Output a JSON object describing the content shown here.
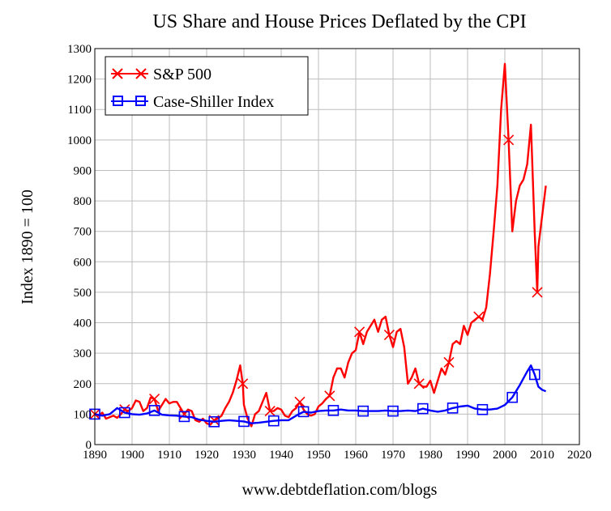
{
  "chart_data": {
    "type": "line",
    "title": "US Share and House Prices Deflated by the CPI",
    "ylabel": "Index 1890 = 100",
    "footer": "www.debtdeflation.com/blogs",
    "xlim": [
      1890,
      2020
    ],
    "ylim": [
      0,
      1300
    ],
    "xticks": [
      1890,
      1900,
      1910,
      1920,
      1930,
      1940,
      1950,
      1960,
      1970,
      1980,
      1990,
      2000,
      2010,
      2020
    ],
    "yticks": [
      0,
      100,
      200,
      300,
      400,
      500,
      600,
      700,
      800,
      900,
      1000,
      1100,
      1200,
      1300
    ],
    "xtick_labels": [
      "1890",
      "1900",
      "1910",
      "1920",
      "1930",
      "1940",
      "1950",
      "1960",
      "1970",
      "1980",
      "1990",
      "2000",
      "2010",
      "2020"
    ],
    "ytick_labels": [
      "0",
      "100",
      "200",
      "300",
      "400",
      "500",
      "600",
      "700",
      "800",
      "900",
      "1000",
      "1100",
      "1200",
      "1300"
    ],
    "grid": true,
    "legend_position": "top-left",
    "series": [
      {
        "name": "S&P 500",
        "color": "#ff0000",
        "marker": "x",
        "x": [
          1890,
          1891,
          1892,
          1893,
          1894,
          1895,
          1896,
          1897,
          1898,
          1899,
          1900,
          1901,
          1902,
          1903,
          1904,
          1905,
          1906,
          1907,
          1908,
          1909,
          1910,
          1911,
          1912,
          1913,
          1914,
          1915,
          1916,
          1917,
          1918,
          1919,
          1920,
          1921,
          1922,
          1923,
          1924,
          1925,
          1926,
          1927,
          1928,
          1929,
          1929.7,
          1930,
          1931,
          1932,
          1933,
          1934,
          1935,
          1936,
          1937,
          1938,
          1939,
          1940,
          1941,
          1942,
          1943,
          1944,
          1945,
          1946,
          1947,
          1948,
          1949,
          1950,
          1951,
          1952,
          1953,
          1954,
          1955,
          1956,
          1957,
          1958,
          1959,
          1960,
          1961,
          1962,
          1963,
          1964,
          1965,
          1966,
          1967,
          1968,
          1969,
          1970,
          1971,
          1972,
          1973,
          1974,
          1975,
          1976,
          1977,
          1978,
          1979,
          1980,
          1981,
          1982,
          1983,
          1984,
          1985,
          1986,
          1987,
          1988,
          1989,
          1990,
          1991,
          1992,
          1993,
          1994,
          1995,
          1996,
          1997,
          1998,
          1999,
          2000,
          2001,
          2002,
          2003,
          2004,
          2005,
          2006,
          2007,
          2008,
          2008.7,
          2009,
          2010,
          2011
        ],
        "values": [
          100,
          95,
          105,
          85,
          90,
          95,
          88,
          100,
          115,
          110,
          120,
          145,
          140,
          110,
          120,
          155,
          150,
          110,
          130,
          150,
          135,
          140,
          140,
          120,
          100,
          115,
          110,
          80,
          75,
          85,
          70,
          65,
          80,
          85,
          95,
          120,
          140,
          170,
          210,
          260,
          200,
          130,
          85,
          60,
          100,
          110,
          140,
          170,
          110,
          110,
          120,
          115,
          95,
          90,
          110,
          120,
          140,
          115,
          100,
          95,
          100,
          125,
          135,
          150,
          160,
          220,
          250,
          250,
          220,
          270,
          300,
          310,
          370,
          330,
          370,
          390,
          410,
          370,
          410,
          420,
          360,
          320,
          370,
          380,
          320,
          200,
          220,
          250,
          200,
          190,
          190,
          210,
          170,
          210,
          250,
          230,
          270,
          330,
          340,
          330,
          390,
          360,
          400,
          410,
          420,
          410,
          450,
          560,
          700,
          850,
          1100,
          1250,
          1000,
          700,
          800,
          850,
          870,
          920,
          1050,
          700,
          500,
          650,
          750,
          850
        ]
      },
      {
        "name": "Case-Shiller Index",
        "color": "#0000ff",
        "marker": "square",
        "x": [
          1890,
          1892,
          1894,
          1896,
          1898,
          1900,
          1902,
          1904,
          1906,
          1908,
          1910,
          1912,
          1914,
          1916,
          1918,
          1920,
          1922,
          1924,
          1926,
          1928,
          1930,
          1932,
          1934,
          1936,
          1938,
          1940,
          1942,
          1944,
          1946,
          1948,
          1950,
          1952,
          1954,
          1956,
          1958,
          1960,
          1962,
          1964,
          1966,
          1968,
          1970,
          1972,
          1974,
          1976,
          1978,
          1980,
          1982,
          1984,
          1986,
          1988,
          1990,
          1992,
          1994,
          1996,
          1998,
          2000,
          2002,
          2004,
          2006,
          2007,
          2008,
          2009,
          2010,
          2011
        ],
        "values": [
          100,
          95,
          100,
          120,
          105,
          100,
          98,
          102,
          112,
          98,
          96,
          95,
          92,
          90,
          82,
          78,
          75,
          78,
          80,
          78,
          76,
          70,
          72,
          75,
          78,
          80,
          80,
          95,
          108,
          105,
          110,
          112,
          112,
          115,
          112,
          112,
          110,
          110,
          110,
          112,
          110,
          110,
          112,
          110,
          118,
          112,
          108,
          112,
          120,
          125,
          128,
          118,
          115,
          115,
          118,
          130,
          155,
          195,
          240,
          260,
          230,
          190,
          180,
          175
        ]
      }
    ]
  }
}
